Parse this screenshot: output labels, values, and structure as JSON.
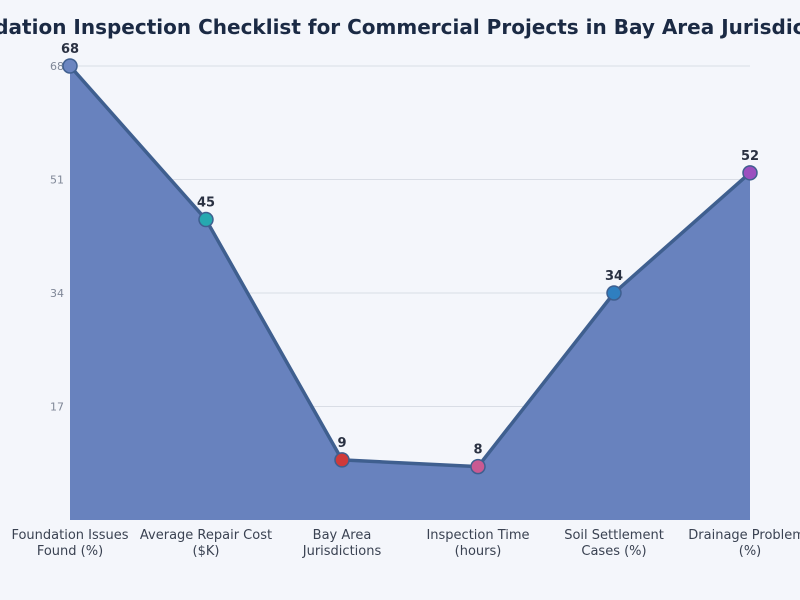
{
  "chart_data": {
    "type": "area",
    "title": "Foundation Inspection Checklist for Commercial Projects in Bay Area Jurisdictions",
    "categories": [
      [
        "Foundation Issues",
        "Found (%)"
      ],
      [
        "Average Repair Cost",
        "($K)"
      ],
      [
        "Bay Area",
        "Jurisdictions"
      ],
      [
        "Inspection Time",
        "(hours)"
      ],
      [
        "Soil Settlement",
        "Cases (%)"
      ],
      [
        "Drainage Problems",
        "(%)"
      ]
    ],
    "values": [
      68,
      45,
      9,
      8,
      34,
      52
    ],
    "point_colors": [
      "#6b85c0",
      "#26a9b0",
      "#cf3a3a",
      "#c95a92",
      "#2f7fc0",
      "#9b4fbf"
    ],
    "ylim": [
      0,
      68
    ],
    "yticks": [
      17,
      34,
      51,
      68
    ],
    "grid": true,
    "area_color": "#6882be",
    "line_color": "#3f5f8f"
  }
}
